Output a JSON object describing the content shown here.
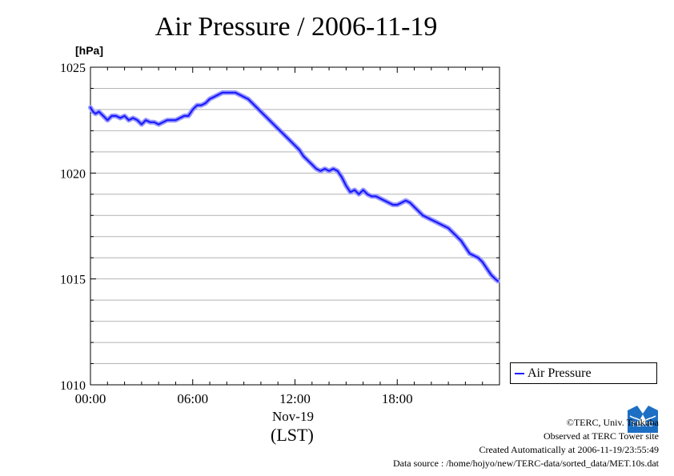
{
  "chart_data": {
    "type": "line",
    "title": "Air Pressure / 2006-11-19",
    "ylabel": "[hPa]",
    "xlabel": "Nov-19",
    "x_unit_label": "(LST)",
    "ylim": [
      1010,
      1025
    ],
    "xlim": [
      0,
      23.9
    ],
    "y_ticks": [
      1010,
      1015,
      1020,
      1025
    ],
    "x_ticks": [
      0,
      6,
      12,
      18
    ],
    "x_tick_labels": [
      "00:00",
      "06:00",
      "12:00",
      "18:00"
    ],
    "grid": true,
    "legend_position": "bottom-right-outside",
    "series": [
      {
        "name": "Air Pressure",
        "color": "#1a1aff",
        "x": [
          0.0,
          0.15,
          0.3,
          0.5,
          0.75,
          1.0,
          1.25,
          1.5,
          1.75,
          2.0,
          2.25,
          2.5,
          2.75,
          3.0,
          3.25,
          3.5,
          3.75,
          4.0,
          4.25,
          4.5,
          4.75,
          5.0,
          5.25,
          5.5,
          5.75,
          6.0,
          6.25,
          6.5,
          6.75,
          7.0,
          7.25,
          7.5,
          7.75,
          8.0,
          8.25,
          8.5,
          8.75,
          9.0,
          9.25,
          9.5,
          9.75,
          10.0,
          10.25,
          10.5,
          10.75,
          11.0,
          11.25,
          11.5,
          11.75,
          12.0,
          12.25,
          12.5,
          12.75,
          13.0,
          13.25,
          13.5,
          13.75,
          14.0,
          14.25,
          14.5,
          14.75,
          15.0,
          15.25,
          15.5,
          15.75,
          16.0,
          16.25,
          16.5,
          16.75,
          17.0,
          17.25,
          17.5,
          17.75,
          18.0,
          18.25,
          18.5,
          18.75,
          19.0,
          19.25,
          19.5,
          19.75,
          20.0,
          20.25,
          20.5,
          20.75,
          21.0,
          21.25,
          21.5,
          21.75,
          22.0,
          22.25,
          22.5,
          22.75,
          23.0,
          23.25,
          23.5,
          23.75,
          23.9
        ],
        "values": [
          1023.1,
          1022.9,
          1022.8,
          1022.9,
          1022.7,
          1022.5,
          1022.7,
          1022.7,
          1022.6,
          1022.7,
          1022.5,
          1022.6,
          1022.5,
          1022.3,
          1022.5,
          1022.4,
          1022.4,
          1022.3,
          1022.4,
          1022.5,
          1022.5,
          1022.5,
          1022.6,
          1022.7,
          1022.7,
          1023.0,
          1023.2,
          1023.2,
          1023.3,
          1023.5,
          1023.6,
          1023.7,
          1023.8,
          1023.8,
          1023.8,
          1023.8,
          1023.7,
          1023.6,
          1023.5,
          1023.3,
          1023.1,
          1022.9,
          1022.7,
          1022.5,
          1022.3,
          1022.1,
          1021.9,
          1021.7,
          1021.5,
          1021.3,
          1021.1,
          1020.8,
          1020.6,
          1020.4,
          1020.2,
          1020.1,
          1020.2,
          1020.1,
          1020.2,
          1020.1,
          1019.8,
          1019.4,
          1019.1,
          1019.2,
          1019.0,
          1019.2,
          1019.0,
          1018.9,
          1018.9,
          1018.8,
          1018.7,
          1018.6,
          1018.5,
          1018.5,
          1018.6,
          1018.7,
          1018.6,
          1018.4,
          1018.2,
          1018.0,
          1017.9,
          1017.8,
          1017.7,
          1017.6,
          1017.5,
          1017.4,
          1017.2,
          1017.0,
          1016.8,
          1016.5,
          1016.2,
          1016.1,
          1016.0,
          1015.8,
          1015.5,
          1015.2,
          1015.0,
          1014.9
        ]
      }
    ]
  },
  "credits": {
    "copyright": "©TERC, Univ. Tsukuba",
    "observed": "Observed at TERC Tower site",
    "created": "Created Automatically at 2006-11-19/23:55:49",
    "source": "Data source : /home/hojyo/new/TERC-data/sorted_data/MET.10s.dat",
    "logo_text": "TERC"
  },
  "colors": {
    "series": "#1a1aff",
    "grid": "#b4b4b4",
    "logo": "#1d6fc4"
  }
}
